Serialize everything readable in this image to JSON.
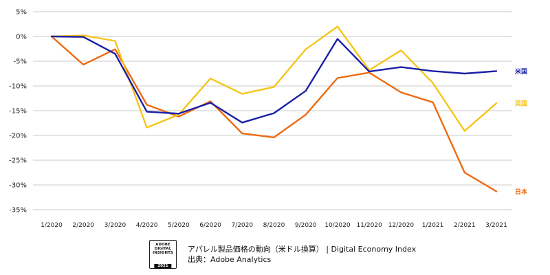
{
  "chart_data": {
    "type": "line",
    "title": "アパレル製品価格の動向（米ドル換算）",
    "xlabel": "",
    "ylabel": "",
    "ylim": [
      -35,
      5
    ],
    "yticks": [
      5,
      0,
      -5,
      -10,
      -15,
      -20,
      -25,
      -30,
      -35
    ],
    "ytick_labels": [
      "5%",
      "0%",
      "-5%",
      "-10%",
      "-15%",
      "-20%",
      "-25%",
      "-30%",
      "-35%"
    ],
    "grid": true,
    "legend": "inline-right",
    "categories": [
      "1/2020",
      "2/2020",
      "3/2020",
      "4/2020",
      "5/2020",
      "6/2020",
      "7/2020",
      "8/2020",
      "9/2020",
      "10/2020",
      "11/2020",
      "12/2020",
      "1/2021",
      "2/2021",
      "3/2021"
    ],
    "series": [
      {
        "name": "米国",
        "color": "#1a1fa8",
        "values": [
          0,
          -0.1,
          -3.5,
          -15.2,
          -15.6,
          -13.4,
          -17.4,
          -15.5,
          -11.0,
          -0.5,
          -7.1,
          -6.2,
          -7.0,
          -7.5,
          -7.0
        ]
      },
      {
        "name": "英国",
        "color": "#f5c518",
        "values": [
          0,
          0.2,
          -0.9,
          -18.4,
          -15.8,
          -8.5,
          -11.6,
          -10.2,
          -2.6,
          2.0,
          -6.8,
          -2.8,
          -9.4,
          -19.1,
          -13.5
        ]
      },
      {
        "name": "日本",
        "color": "#ee6a10",
        "values": [
          0,
          -5.7,
          -2.6,
          -13.8,
          -16.2,
          -13.1,
          -19.6,
          -20.4,
          -15.8,
          -8.4,
          -7.3,
          -11.3,
          -13.3,
          -27.5,
          -31.3
        ]
      }
    ]
  },
  "footer": {
    "badge": {
      "line1": "ADOBE",
      "line2": "DIGITAL",
      "line3": "INSIGHTS",
      "year": "2021"
    },
    "caption_line1": "アパレル製品価格の動向（米ドル換算） | Digital Economy Index",
    "caption_line2": "出典：Adobe Analytics"
  }
}
